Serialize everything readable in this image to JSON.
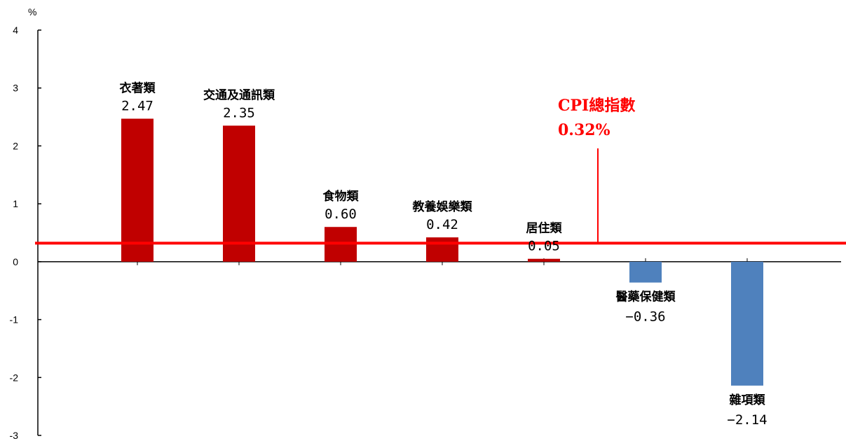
{
  "chart_data": {
    "type": "bar",
    "y_unit": "%",
    "ylim": [
      -3,
      4
    ],
    "yticks": [
      "4",
      "3",
      "2",
      "1",
      "0",
      "-1",
      "-2",
      "-3"
    ],
    "categories": [
      "衣著類",
      "交通及通訊類",
      "食物類",
      "教養娛樂類",
      "居住類",
      "醫藥保健類",
      "雜項類"
    ],
    "values": [
      2.47,
      2.35,
      0.6,
      0.42,
      0.05,
      -0.36,
      -2.14
    ],
    "value_labels": [
      "2.47",
      "2.35",
      "0.60",
      "0.42",
      "0.05",
      "−0.36",
      "−2.14"
    ],
    "positive_color": "#C00000",
    "negative_color": "#4F81BD",
    "reference_line": {
      "label": "CPI總指數",
      "value": 0.32,
      "value_label": "0.32%",
      "color": "#FF0000"
    },
    "grid": false,
    "legend": "none"
  }
}
